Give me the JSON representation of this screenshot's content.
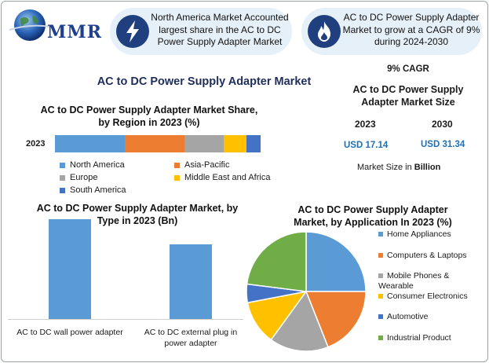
{
  "header": {
    "logo_text": "MMR",
    "callout_left": "North America Market Accounted largest share in the AC to DC Power Supply Adapter Market",
    "callout_right": "AC to DC Power Supply Adapter Market to grow at a CAGR of 9% during 2024-2030",
    "icon_left": "lightning-bolt-icon",
    "icon_right": "flame-icon"
  },
  "main_title": "AC to DC Power Supply Adapter Market",
  "market_size": {
    "cagr": "9% CAGR",
    "title": "AC to DC Power Supply Adapter Market Size",
    "year1": "2023",
    "year2": "2030",
    "value1": "USD 17.14",
    "value2": "USD 31.34",
    "note_prefix": "Market Size in ",
    "note_unit": "Billion"
  },
  "colors": {
    "blue": "#5b9bd5",
    "orange": "#ed7d31",
    "gray": "#a5a5a5",
    "yellow": "#ffc000",
    "dark_blue": "#4472c4",
    "green": "#70ad47"
  },
  "chart_data": [
    {
      "type": "bar",
      "orientation": "horizontal-stacked",
      "title": "AC to DC Power Supply Adapter Market Share, by Region in 2023 (%)",
      "categories": [
        "2023"
      ],
      "series": [
        {
          "name": "North America",
          "values": [
            34
          ],
          "color": "#5b9bd5"
        },
        {
          "name": "Asia-Pacific",
          "values": [
            29
          ],
          "color": "#ed7d31"
        },
        {
          "name": "Europe",
          "values": [
            19
          ],
          "color": "#a5a5a5"
        },
        {
          "name": "Middle East and Africa",
          "values": [
            11
          ],
          "color": "#ffc000"
        },
        {
          "name": "South America",
          "values": [
            7
          ],
          "color": "#4472c4"
        }
      ]
    },
    {
      "type": "bar",
      "title": "AC to DC Power Supply Adapter Market, by Type in 2023 (Bn)",
      "categories": [
        "AC to DC wall power adapter",
        "AC to DC external plug in power adapter"
      ],
      "values": [
        9.8,
        7.34
      ],
      "ylim": [
        0,
        10
      ]
    },
    {
      "type": "pie",
      "title": "AC to DC Power Supply Adapter Market, by Application In 2023 (%)",
      "labels": [
        "Home Appliances",
        "Computers & Laptops",
        "Mobile Phones & Wearable",
        "Consumer Electronics",
        "Automotive",
        "Industrial Product"
      ],
      "values": [
        25,
        19,
        16,
        12,
        5,
        23
      ],
      "colors": [
        "#5b9bd5",
        "#ed7d31",
        "#a5a5a5",
        "#ffc000",
        "#4472c4",
        "#70ad47"
      ]
    }
  ]
}
